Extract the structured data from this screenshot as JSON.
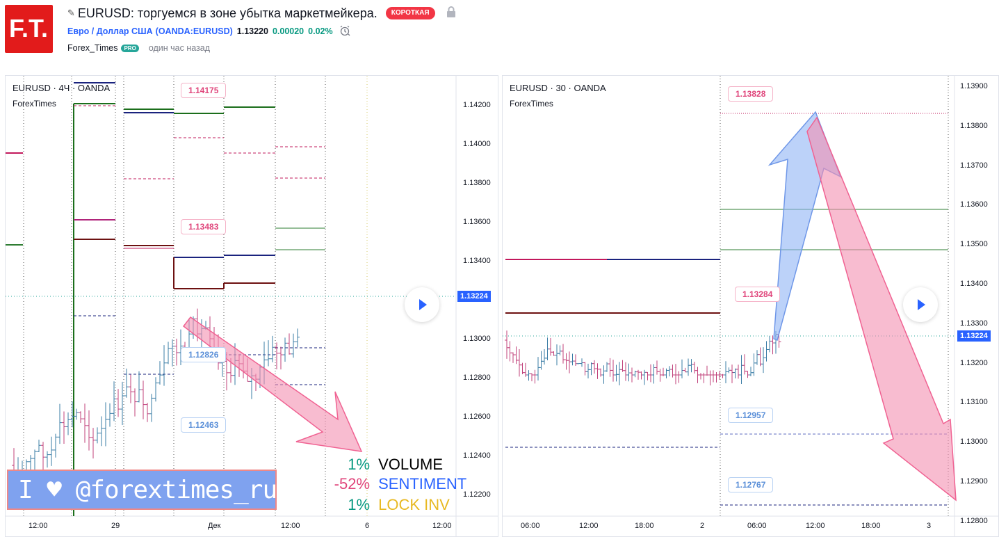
{
  "header": {
    "logo_text": "F.T.",
    "title": "EURUSD: торгуемся в зоне убытка маркетмейкера.",
    "badge": "КОРОТКАЯ",
    "symbol_name": "Евро / Доллар США",
    "symbol_code": "(OANDA:EURUSD)",
    "price": "1.13220",
    "change": "0.00020",
    "change_pct": "0.02%",
    "author": "Forex_Times",
    "pro_badge": "PRO",
    "posted": "один час назад"
  },
  "colors": {
    "accent": "#2962ff",
    "short": "#f23645",
    "up": "#089981",
    "pink_arrow": "#f48fb1",
    "blue_arrow": "#90b4f5",
    "logo_red": "#e21b1b"
  },
  "chart_left": {
    "legend_title": "EURUSD · 4Ч · OANDA",
    "legend_sub": "ForexTimes",
    "price_ticks": [
      "1.14200",
      "1.14000",
      "1.13800",
      "1.13600",
      "1.13400",
      "1.13200",
      "1.13000",
      "1.12800",
      "1.12600",
      "1.12400",
      "1.12200"
    ],
    "time_ticks": [
      "12:00",
      "29",
      "Дек",
      "12:00",
      "6",
      "12:00"
    ],
    "current_price": "1.13224",
    "callouts": [
      "1.14175",
      "1.13483",
      "1.12826",
      "1.12463"
    ],
    "banner": "I ♥ @forextimes_ru",
    "stats": [
      {
        "pct": "1%",
        "label": "VOLUME",
        "pct_color": "#089981",
        "label_color": "#000000"
      },
      {
        "pct": "-52%",
        "label": "SENTIMENT",
        "pct_color": "#e0457b",
        "label_color": "#2962ff"
      },
      {
        "pct": "1%",
        "label": "LOCK INV",
        "pct_color": "#089981",
        "label_color": "#e8b923"
      }
    ]
  },
  "chart_right": {
    "legend_title": "EURUSD · 30 · OANDA",
    "legend_sub": "ForexTimes",
    "price_ticks": [
      "1.13900",
      "1.13800",
      "1.13700",
      "1.13600",
      "1.13500",
      "1.13400",
      "1.13300",
      "1.13200",
      "1.13100",
      "1.13000",
      "1.12900",
      "1.12800"
    ],
    "time_ticks": [
      "06:00",
      "12:00",
      "18:00",
      "2",
      "06:00",
      "12:00",
      "18:00",
      "3"
    ],
    "current_price": "1.13224",
    "callouts": [
      "1.13828",
      "1.13284",
      "1.12957",
      "1.12767"
    ]
  }
}
